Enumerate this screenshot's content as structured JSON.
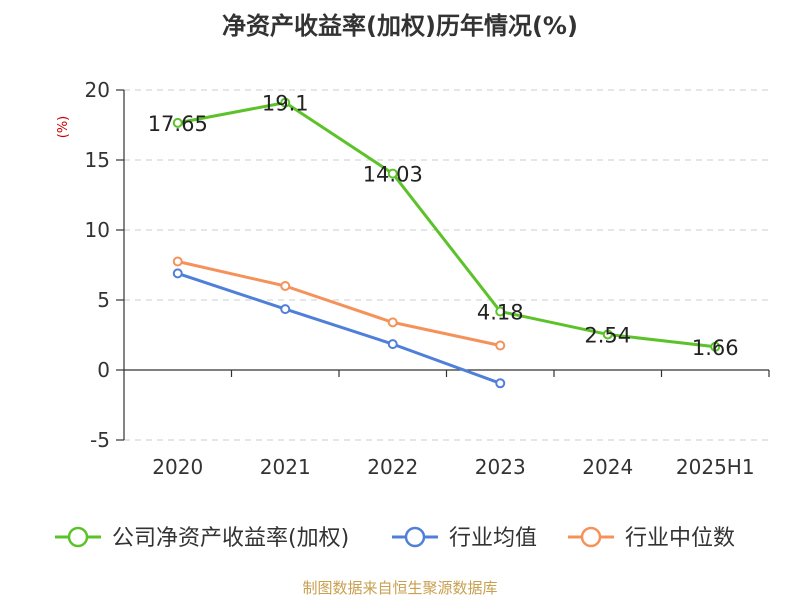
{
  "chart_data": {
    "type": "line",
    "title": "净资产收益率(加权)历年情况(%)",
    "ylabel": "(%)",
    "categories": [
      "2020",
      "2021",
      "2022",
      "2023",
      "2024",
      "2025H1"
    ],
    "ylim": [
      -5,
      20
    ],
    "yticks": [
      "20",
      "15",
      "10",
      "5",
      "0",
      "-5"
    ],
    "ytick_values": [
      20,
      15,
      10,
      5,
      0,
      -5
    ],
    "grid": true,
    "legend_position": "bottom",
    "series": [
      {
        "name": "公司净资产收益率(加权)",
        "color": "#5cc22a",
        "values": [
          17.65,
          19.1,
          14.03,
          4.18,
          2.54,
          1.66
        ],
        "labels": [
          "17.65",
          "19.1",
          "14.03",
          "4.18",
          "2.54",
          "1.66"
        ]
      },
      {
        "name": "行业均值",
        "color": "#4f7fd9",
        "values": [
          6.9,
          4.35,
          1.85,
          -0.95,
          null,
          null
        ]
      },
      {
        "name": "行业中位数",
        "color": "#f5925a",
        "values": [
          7.75,
          6.0,
          3.4,
          1.75,
          null,
          null
        ]
      }
    ]
  },
  "source": "制图数据来自恒生聚源数据库"
}
